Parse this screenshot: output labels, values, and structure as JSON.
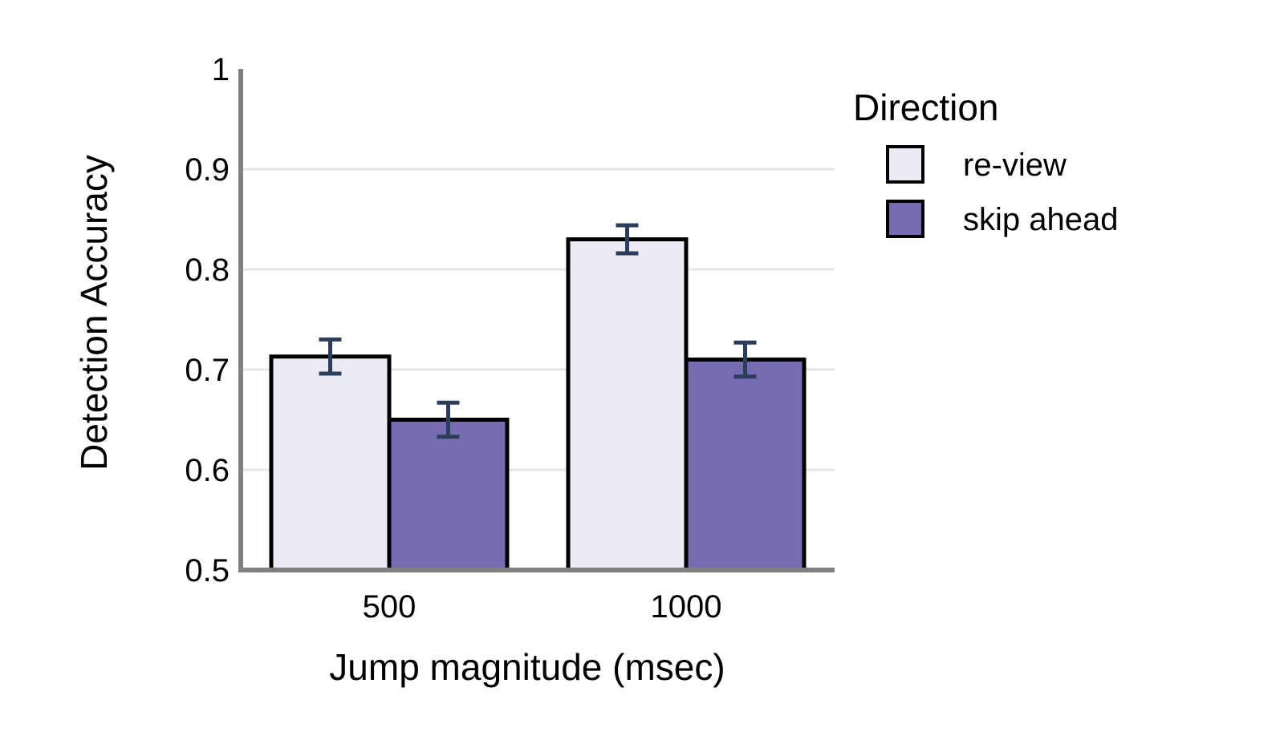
{
  "chart_data": {
    "type": "bar",
    "xlabel": "Jump magnitude (msec)",
    "ylabel": "Detection Accuracy",
    "ylim": [
      0.5,
      1.0
    ],
    "yticks": [
      "0.5",
      "0.6",
      "0.7",
      "0.8",
      "0.9",
      "1"
    ],
    "categories": [
      "500",
      "1000"
    ],
    "grid": true,
    "legend": {
      "title": "Direction",
      "placement": "right"
    },
    "series": [
      {
        "name": "re-view",
        "color": "#ecebf5",
        "values": [
          0.713,
          0.83
        ],
        "errors": [
          0.017,
          0.014
        ]
      },
      {
        "name": "skip ahead",
        "color": "#766cb1",
        "values": [
          0.65,
          0.71
        ],
        "errors": [
          0.017,
          0.017
        ]
      }
    ],
    "error_bar_color": "#2c3e5c",
    "axis_color": "#808080",
    "grid_color": "#e6e6e6"
  }
}
